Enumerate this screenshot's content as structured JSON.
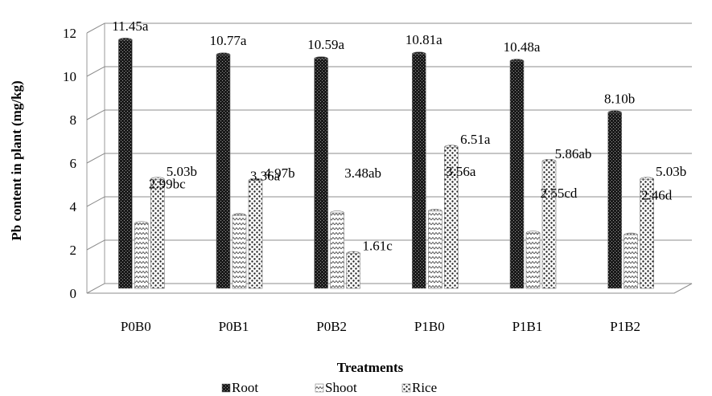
{
  "chart_data": {
    "type": "bar",
    "title": "",
    "xlabel": "Treatments",
    "ylabel": "Pb content in plant (mg/kg)",
    "ylim": [
      0,
      12
    ],
    "yticks": [
      "0",
      "2",
      "4",
      "6",
      "8",
      "10",
      "12"
    ],
    "grid": true,
    "legend_position": "bottom",
    "categories": [
      "P0B0",
      "P0B1",
      "P0B2",
      "P1B0",
      "P1B1",
      "P1B2"
    ],
    "series": [
      {
        "name": "Root",
        "pattern": "dark-checker",
        "values": [
          11.45,
          10.77,
          10.59,
          10.81,
          10.48,
          8.1
        ],
        "labels": [
          "11.45a",
          "10.77a",
          "10.59a",
          "10.81a",
          "10.48a",
          "8.10b"
        ]
      },
      {
        "name": "Shoot",
        "pattern": "zigzag",
        "values": [
          2.99,
          3.36,
          3.48,
          3.56,
          2.55,
          2.46
        ],
        "labels": [
          "2.99bc",
          "3.36a",
          "3.48ab",
          "3.56a",
          "2.55cd",
          "2.46d"
        ]
      },
      {
        "name": "Rice",
        "pattern": "dots",
        "values": [
          5.03,
          4.97,
          1.61,
          6.51,
          5.86,
          5.03
        ],
        "labels": [
          "5.03b",
          "4.97b",
          "1.61c",
          "6.51a",
          "5.86ab",
          "5.03b"
        ]
      }
    ]
  }
}
